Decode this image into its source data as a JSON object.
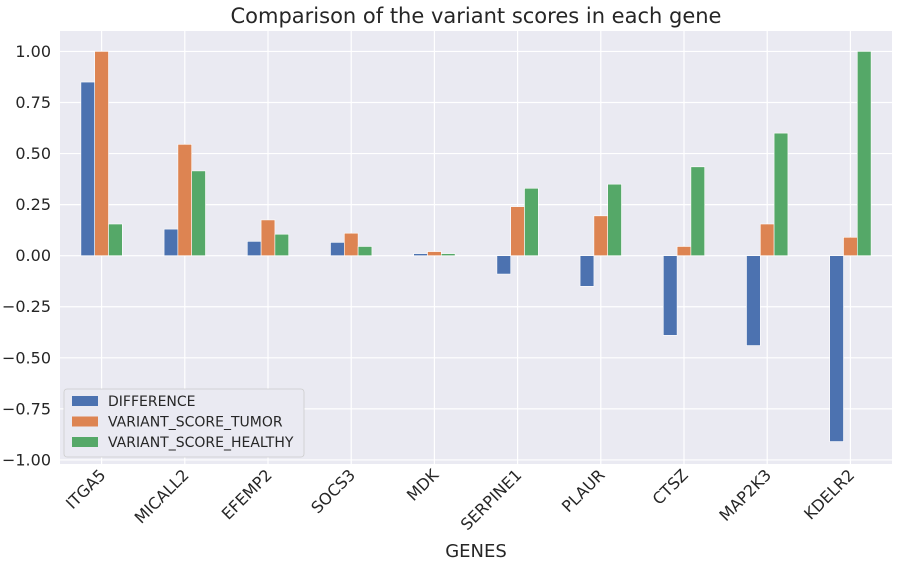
{
  "chart_data": {
    "type": "bar",
    "title": "Comparison of the variant scores in each gene",
    "xlabel": "GENES",
    "ylabel": "",
    "ylim": [
      -1.02,
      1.1
    ],
    "yticks": [
      -1.0,
      -0.75,
      -0.5,
      -0.25,
      0.0,
      0.25,
      0.5,
      0.75,
      1.0
    ],
    "ytick_labels": [
      "−1.00",
      "−0.75",
      "−0.50",
      "−0.25",
      "0.00",
      "0.25",
      "0.50",
      "0.75",
      "1.00"
    ],
    "categories": [
      "ITGA5",
      "MICALL2",
      "EFEMP2",
      "SOCS3",
      "MDK",
      "SERPINE1",
      "PLAUR",
      "CTSZ",
      "MAP2K3",
      "KDELR2"
    ],
    "series": [
      {
        "name": "DIFFERENCE",
        "color": "#4c72b0",
        "values": [
          0.85,
          0.13,
          0.07,
          0.065,
          0.01,
          -0.09,
          -0.15,
          -0.39,
          -0.44,
          -0.91
        ]
      },
      {
        "name": "VARIANT_SCORE_TUMOR",
        "color": "#dd8452",
        "values": [
          1.0,
          0.545,
          0.175,
          0.11,
          0.02,
          0.24,
          0.195,
          0.045,
          0.155,
          0.09
        ]
      },
      {
        "name": "VARIANT_SCORE_HEALTHY",
        "color": "#55a868",
        "values": [
          0.155,
          0.415,
          0.105,
          0.045,
          0.01,
          0.33,
          0.35,
          0.435,
          0.6,
          1.0
        ]
      }
    ],
    "grid": true,
    "background": "#eaeaf2",
    "legend_position": "lower-left"
  }
}
